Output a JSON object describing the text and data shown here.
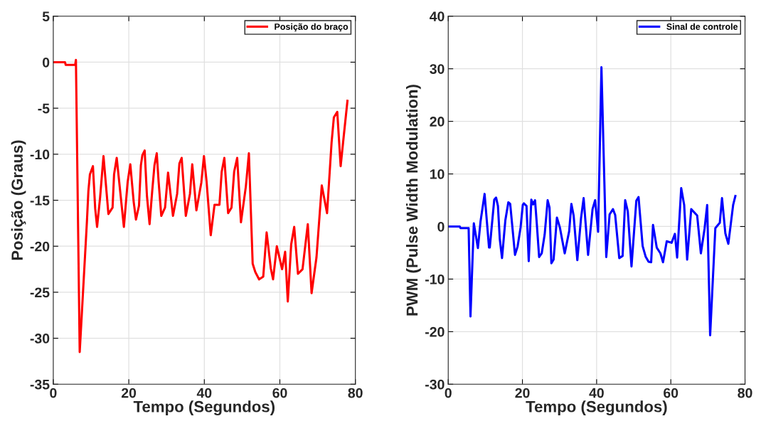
{
  "chart_data": [
    {
      "type": "line",
      "xlabel": "Tempo (Segundos)",
      "ylabel": "Posição (Graus)",
      "xlim": [
        0,
        80
      ],
      "xticks": [
        0,
        20,
        40,
        60,
        80
      ],
      "ylim": [
        -35,
        5
      ],
      "yticks": [
        -35,
        -30,
        -25,
        -20,
        -15,
        -10,
        -5,
        0,
        5
      ],
      "grid": true,
      "legend": "top right",
      "series": [
        {
          "name": "Posição do braço",
          "color": "#ff0000",
          "x": [
            0,
            3.1,
            3.3,
            5.8,
            6.0,
            7.0,
            8.9,
            9.3,
            9.7,
            10.5,
            11.1,
            11.6,
            12.4,
            13.3,
            14.6,
            15.7,
            16.1,
            16.8,
            18.7,
            19.7,
            20.4,
            21.3,
            21.9,
            22.7,
            23.2,
            23.6,
            24.2,
            24.8,
            25.5,
            26.2,
            26.8,
            27.4,
            27.9,
            28.6,
            29.6,
            30.4,
            31.1,
            31.7,
            32.8,
            33.4,
            34.0,
            35.1,
            36.2,
            36.8,
            37.9,
            39.2,
            39.9,
            40.6,
            41.7,
            42.7,
            44.0,
            44.6,
            45.3,
            46.3,
            47.2,
            47.9,
            48.7,
            49.7,
            51.0,
            51.8,
            52.8,
            53.5,
            54.5,
            55.6,
            56.5,
            57.6,
            58.2,
            59.2,
            60.6,
            61.4,
            62.1,
            63.0,
            63.8,
            64.8,
            66.0,
            67.4,
            68.4,
            69.7,
            71.1,
            72.5,
            73.7,
            74.3,
            75.2,
            76.1,
            76.9,
            77.9
          ],
          "values": [
            0,
            0,
            -0.3,
            -0.3,
            0.25,
            -31.5,
            -17.4,
            -14.0,
            -12.2,
            -11.3,
            -15.9,
            -17.9,
            -14.7,
            -10.2,
            -16.5,
            -15.8,
            -12.2,
            -10.4,
            -17.9,
            -13.0,
            -11.1,
            -15.2,
            -17.1,
            -15.6,
            -11.2,
            -10.1,
            -9.6,
            -14.5,
            -17.6,
            -14.0,
            -11.2,
            -9.9,
            -13.0,
            -16.7,
            -15.8,
            -12.0,
            -14.5,
            -16.7,
            -14.3,
            -11.0,
            -10.4,
            -16.7,
            -14.3,
            -11.1,
            -16.1,
            -13.1,
            -10.2,
            -13.0,
            -18.8,
            -15.5,
            -15.5,
            -11.9,
            -10.4,
            -16.4,
            -15.8,
            -11.9,
            -10.4,
            -17.4,
            -13.5,
            -9.9,
            -21.9,
            -22.8,
            -23.6,
            -23.3,
            -18.5,
            -22.4,
            -23.6,
            -20.0,
            -22.5,
            -20.6,
            -26.0,
            -19.8,
            -17.9,
            -23.0,
            -22.5,
            -17.6,
            -25.1,
            -21.2,
            -13.4,
            -16.4,
            -8.7,
            -6.0,
            -5.4,
            -11.3,
            -8.1,
            -4.2
          ]
        }
      ]
    },
    {
      "type": "line",
      "xlabel": "Tempo (Segundos)",
      "ylabel": "PWM (Pulse Width Modulation)",
      "xlim": [
        0,
        80
      ],
      "xticks": [
        0,
        20,
        40,
        60,
        80
      ],
      "ylim": [
        -30,
        40
      ],
      "yticks": [
        -30,
        -20,
        -10,
        0,
        10,
        20,
        30,
        40
      ],
      "grid": true,
      "legend": "top right",
      "series": [
        {
          "name": "Sinal de controle",
          "color": "#0000ff",
          "x": [
            0,
            3.1,
            3.3,
            5.5,
            6.0,
            6.9,
            8.0,
            8.7,
            9.8,
            11.0,
            11.2,
            12.4,
            12.9,
            13.4,
            13.9,
            14.5,
            15.4,
            16.2,
            16.7,
            18.0,
            18.7,
            19.5,
            20.1,
            20.4,
            21.1,
            21.7,
            22.4,
            22.9,
            23.4,
            23.9,
            24.5,
            25.2,
            26.0,
            26.8,
            27.3,
            27.8,
            28.4,
            29.3,
            30.1,
            31.4,
            32.6,
            33.2,
            33.8,
            34.8,
            35.8,
            36.5,
            37.7,
            38.9,
            39.6,
            40.4,
            41.3,
            42.6,
            43.5,
            44.4,
            45.0,
            46.1,
            47.0,
            47.7,
            48.4,
            49.4,
            50.7,
            51.3,
            52.4,
            53.2,
            54.0,
            54.7,
            55.2,
            56.2,
            57.2,
            57.9,
            58.9,
            60.2,
            61.1,
            61.7,
            62.8,
            63.6,
            64.4,
            65.5,
            67.1,
            68.1,
            69.1,
            69.8,
            70.6,
            72.0,
            73.2,
            73.8,
            74.7,
            75.5,
            76.8,
            77.4
          ],
          "values": [
            0,
            0,
            -0.3,
            -0.3,
            -17.1,
            0.6,
            -4.1,
            0.9,
            6.2,
            -4.0,
            -4.0,
            5.1,
            5.5,
            3.9,
            -2.4,
            -6.0,
            1.2,
            4.6,
            4.3,
            -5.4,
            -3.8,
            -0.2,
            4.1,
            4.4,
            3.9,
            -6.6,
            5.1,
            4.2,
            5.0,
            0.3,
            -5.8,
            -5.1,
            -1.5,
            5.0,
            3.6,
            -7.0,
            -6.3,
            1.7,
            -0.2,
            -5.1,
            -0.9,
            4.3,
            2.1,
            -6.4,
            1.6,
            5.4,
            -5.4,
            3.3,
            5.0,
            -1.0,
            30.3,
            -5.8,
            2.3,
            3.3,
            2.2,
            -6.0,
            -5.6,
            5.0,
            2.9,
            -7.6,
            4.9,
            5.6,
            -3.7,
            -5.7,
            -6.7,
            -6.8,
            0.3,
            -4.0,
            -5.1,
            -6.8,
            -2.8,
            -3.1,
            -1.4,
            -5.9,
            7.3,
            4.1,
            -6.3,
            3.3,
            2.1,
            -5.1,
            -0.4,
            4.1,
            -20.7,
            -0.3,
            0.7,
            5.4,
            -1.3,
            -3.3,
            4.1,
            5.8
          ]
        }
      ]
    }
  ]
}
